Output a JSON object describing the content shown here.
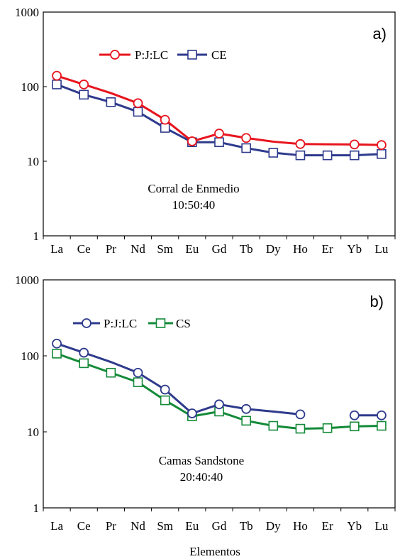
{
  "chart_data": [
    {
      "type": "line",
      "yscale": "log",
      "ylim": [
        1,
        1000
      ],
      "yticks": [
        "1",
        "10",
        "100",
        "1000"
      ],
      "categories": [
        "La",
        "Ce",
        "Pr",
        "Nd",
        "Sm",
        "Eu",
        "Gd",
        "Tb",
        "Dy",
        "Ho",
        "Er",
        "Yb",
        "Lu"
      ],
      "panel_label": "a)",
      "annotation": [
        "Corral de Enmedio",
        "10:50:40"
      ],
      "legend_position": "top-left",
      "series": [
        {
          "name": "P:J:LC",
          "color": "#e8141e",
          "marker": "circle",
          "values": [
            140,
            107,
            null,
            60,
            36,
            18.5,
            23.5,
            20.5,
            null,
            17,
            null,
            16.8,
            16.5
          ],
          "line_values": [
            140,
            107,
            82,
            60,
            36,
            18.5,
            23.5,
            20.5,
            18.3,
            17,
            16.9,
            16.8,
            16.5
          ]
        },
        {
          "name": "CE",
          "color": "#2e3a8c",
          "marker": "square",
          "values": [
            107,
            78,
            62,
            46,
            28,
            18,
            18,
            15,
            13,
            12,
            12,
            12,
            12.5
          ],
          "line_values": [
            107,
            78,
            62,
            46,
            28,
            18,
            18,
            15,
            13,
            12,
            12,
            12,
            12.5
          ]
        }
      ]
    },
    {
      "type": "line",
      "yscale": "log",
      "ylim": [
        1,
        1000
      ],
      "yticks": [
        "1",
        "10",
        "100",
        "1000"
      ],
      "categories": [
        "La",
        "Ce",
        "Pr",
        "Nd",
        "Sm",
        "Eu",
        "Gd",
        "Tb",
        "Dy",
        "Ho",
        "Er",
        "Yb",
        "Lu"
      ],
      "panel_label": "b)",
      "annotation": [
        "Camas Sandstone",
        "20:40:40"
      ],
      "legend_position": "top-left",
      "xlabel": "Elementos",
      "series": [
        {
          "name": "P:J:LC",
          "color": "#2e3a8c",
          "marker": "circle",
          "values": [
            145,
            110,
            null,
            60,
            36,
            17.5,
            23,
            20,
            null,
            17,
            null,
            16.5,
            16.5
          ],
          "line_values": [
            145,
            110,
            83,
            60,
            36,
            17.5,
            23,
            20,
            18.5,
            17,
            null,
            16.5,
            16.5
          ]
        },
        {
          "name": "CS",
          "color": "#138a38",
          "marker": "square",
          "values": [
            107,
            80,
            60,
            45,
            26,
            16,
            18.5,
            14,
            12,
            11,
            11.2,
            11.8,
            12
          ],
          "line_values": [
            107,
            80,
            60,
            45,
            26,
            16,
            18.5,
            14,
            12,
            11,
            11.2,
            11.8,
            12
          ]
        }
      ]
    }
  ]
}
